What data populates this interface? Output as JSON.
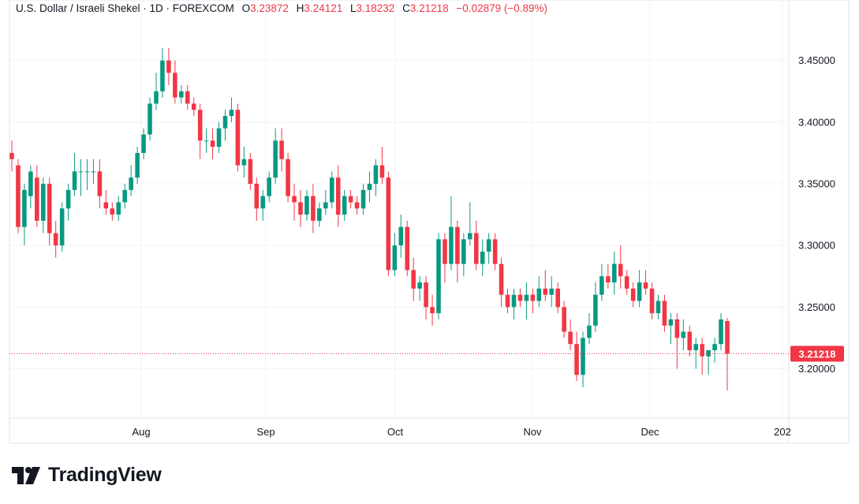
{
  "header": {
    "symbol": "U.S. Dollar / Israeli Shekel · 1D · FOREXCOM",
    "open_label": "O",
    "open": "3.23872",
    "high_label": "H",
    "high": "3.24121",
    "low_label": "L",
    "low": "3.18232",
    "close_label": "C",
    "close": "3.21218",
    "change": "−0.02879 (−0.89%)"
  },
  "brand": {
    "name": "TradingView"
  },
  "colors": {
    "up": "#089981",
    "down": "#f23645",
    "grid": "#f0f3fa",
    "axis_text": "#131722",
    "border": "#e0e3eb"
  },
  "chart_data": {
    "type": "candlestick",
    "title": "U.S. Dollar / Israeli Shekel · 1D · FOREXCOM",
    "xlabel": "",
    "ylabel": "",
    "ylim": [
      3.16,
      3.485
    ],
    "y_ticks": [
      "3.20000",
      "3.25000",
      "3.30000",
      "3.35000",
      "3.40000",
      "3.45000"
    ],
    "x_tick_labels": [
      "Aug",
      "Sep",
      "Oct",
      "Nov",
      "Dec",
      "202"
    ],
    "last_price_label": "3.21218",
    "last_price": 3.21218,
    "grid": true,
    "ohlc": [
      [
        3.375,
        3.385,
        3.36,
        3.37
      ],
      [
        3.365,
        3.37,
        3.31,
        3.315
      ],
      [
        3.315,
        3.35,
        3.3,
        3.345
      ],
      [
        3.34,
        3.365,
        3.33,
        3.36
      ],
      [
        3.355,
        3.365,
        3.315,
        3.32
      ],
      [
        3.32,
        3.355,
        3.31,
        3.35
      ],
      [
        3.35,
        3.355,
        3.3,
        3.31
      ],
      [
        3.31,
        3.32,
        3.29,
        3.3
      ],
      [
        3.3,
        3.335,
        3.295,
        3.33
      ],
      [
        3.33,
        3.35,
        3.32,
        3.345
      ],
      [
        3.345,
        3.375,
        3.34,
        3.36
      ],
      [
        3.36,
        3.37,
        3.34,
        3.36
      ],
      [
        3.36,
        3.37,
        3.345,
        3.36
      ],
      [
        3.36,
        3.37,
        3.35,
        3.36
      ],
      [
        3.36,
        3.37,
        3.33,
        3.34
      ],
      [
        3.335,
        3.345,
        3.325,
        3.33
      ],
      [
        3.33,
        3.335,
        3.32,
        3.325
      ],
      [
        3.325,
        3.34,
        3.32,
        3.335
      ],
      [
        3.335,
        3.35,
        3.33,
        3.345
      ],
      [
        3.345,
        3.365,
        3.34,
        3.355
      ],
      [
        3.355,
        3.38,
        3.35,
        3.375
      ],
      [
        3.375,
        3.395,
        3.37,
        3.39
      ],
      [
        3.39,
        3.42,
        3.385,
        3.415
      ],
      [
        3.415,
        3.44,
        3.41,
        3.425
      ],
      [
        3.425,
        3.46,
        3.42,
        3.45
      ],
      [
        3.45,
        3.46,
        3.43,
        3.44
      ],
      [
        3.44,
        3.45,
        3.415,
        3.42
      ],
      [
        3.42,
        3.43,
        3.415,
        3.425
      ],
      [
        3.425,
        3.43,
        3.41,
        3.415
      ],
      [
        3.415,
        3.42,
        3.405,
        3.41
      ],
      [
        3.41,
        3.415,
        3.37,
        3.385
      ],
      [
        3.385,
        3.395,
        3.375,
        3.385
      ],
      [
        3.385,
        3.395,
        3.37,
        3.38
      ],
      [
        3.38,
        3.4,
        3.375,
        3.395
      ],
      [
        3.395,
        3.41,
        3.385,
        3.405
      ],
      [
        3.405,
        3.42,
        3.4,
        3.41
      ],
      [
        3.41,
        3.415,
        3.36,
        3.365
      ],
      [
        3.365,
        3.38,
        3.355,
        3.37
      ],
      [
        3.37,
        3.375,
        3.345,
        3.35
      ],
      [
        3.35,
        3.355,
        3.32,
        3.33
      ],
      [
        3.33,
        3.345,
        3.32,
        3.34
      ],
      [
        3.34,
        3.36,
        3.335,
        3.355
      ],
      [
        3.355,
        3.395,
        3.35,
        3.385
      ],
      [
        3.385,
        3.395,
        3.36,
        3.37
      ],
      [
        3.37,
        3.375,
        3.335,
        3.34
      ],
      [
        3.34,
        3.35,
        3.32,
        3.335
      ],
      [
        3.335,
        3.345,
        3.315,
        3.325
      ],
      [
        3.325,
        3.345,
        3.32,
        3.34
      ],
      [
        3.34,
        3.35,
        3.31,
        3.32
      ],
      [
        3.32,
        3.335,
        3.315,
        3.33
      ],
      [
        3.33,
        3.345,
        3.325,
        3.335
      ],
      [
        3.335,
        3.36,
        3.33,
        3.355
      ],
      [
        3.355,
        3.365,
        3.315,
        3.325
      ],
      [
        3.325,
        3.345,
        3.32,
        3.34
      ],
      [
        3.34,
        3.345,
        3.33,
        3.335
      ],
      [
        3.335,
        3.34,
        3.325,
        3.33
      ],
      [
        3.33,
        3.35,
        3.325,
        3.345
      ],
      [
        3.345,
        3.36,
        3.335,
        3.35
      ],
      [
        3.35,
        3.37,
        3.34,
        3.365
      ],
      [
        3.365,
        3.38,
        3.35,
        3.355
      ],
      [
        3.355,
        3.36,
        3.275,
        3.28
      ],
      [
        3.28,
        3.31,
        3.275,
        3.3
      ],
      [
        3.3,
        3.325,
        3.29,
        3.315
      ],
      [
        3.315,
        3.32,
        3.275,
        3.28
      ],
      [
        3.28,
        3.29,
        3.255,
        3.265
      ],
      [
        3.265,
        3.275,
        3.255,
        3.27
      ],
      [
        3.27,
        3.275,
        3.24,
        3.25
      ],
      [
        3.25,
        3.26,
        3.235,
        3.245
      ],
      [
        3.245,
        3.31,
        3.24,
        3.305
      ],
      [
        3.305,
        3.31,
        3.27,
        3.285
      ],
      [
        3.285,
        3.34,
        3.28,
        3.315
      ],
      [
        3.315,
        3.32,
        3.27,
        3.285
      ],
      [
        3.285,
        3.31,
        3.275,
        3.305
      ],
      [
        3.305,
        3.335,
        3.3,
        3.31
      ],
      [
        3.31,
        3.32,
        3.28,
        3.285
      ],
      [
        3.285,
        3.305,
        3.275,
        3.295
      ],
      [
        3.295,
        3.31,
        3.285,
        3.305
      ],
      [
        3.305,
        3.31,
        3.28,
        3.285
      ],
      [
        3.285,
        3.29,
        3.25,
        3.26
      ],
      [
        3.26,
        3.265,
        3.245,
        3.25
      ],
      [
        3.25,
        3.265,
        3.24,
        3.26
      ],
      [
        3.26,
        3.265,
        3.25,
        3.255
      ],
      [
        3.255,
        3.27,
        3.24,
        3.26
      ],
      [
        3.26,
        3.265,
        3.245,
        3.255
      ],
      [
        3.255,
        3.275,
        3.25,
        3.265
      ],
      [
        3.265,
        3.28,
        3.255,
        3.26
      ],
      [
        3.26,
        3.275,
        3.25,
        3.265
      ],
      [
        3.265,
        3.27,
        3.245,
        3.25
      ],
      [
        3.25,
        3.255,
        3.225,
        3.23
      ],
      [
        3.23,
        3.24,
        3.215,
        3.22
      ],
      [
        3.22,
        3.23,
        3.19,
        3.195
      ],
      [
        3.195,
        3.23,
        3.185,
        3.225
      ],
      [
        3.225,
        3.245,
        3.22,
        3.235
      ],
      [
        3.235,
        3.27,
        3.23,
        3.26
      ],
      [
        3.26,
        3.285,
        3.255,
        3.275
      ],
      [
        3.275,
        3.285,
        3.265,
        3.27
      ],
      [
        3.27,
        3.295,
        3.26,
        3.285
      ],
      [
        3.285,
        3.3,
        3.265,
        3.275
      ],
      [
        3.275,
        3.28,
        3.26,
        3.265
      ],
      [
        3.265,
        3.27,
        3.25,
        3.255
      ],
      [
        3.255,
        3.28,
        3.25,
        3.27
      ],
      [
        3.27,
        3.28,
        3.26,
        3.265
      ],
      [
        3.265,
        3.27,
        3.24,
        3.245
      ],
      [
        3.245,
        3.26,
        3.24,
        3.255
      ],
      [
        3.255,
        3.26,
        3.23,
        3.235
      ],
      [
        3.235,
        3.245,
        3.22,
        3.24
      ],
      [
        3.24,
        3.245,
        3.2,
        3.225
      ],
      [
        3.225,
        3.24,
        3.215,
        3.23
      ],
      [
        3.23,
        3.235,
        3.21,
        3.215
      ],
      [
        3.215,
        3.225,
        3.2,
        3.22
      ],
      [
        3.22,
        3.225,
        3.195,
        3.21
      ],
      [
        3.21,
        3.215,
        3.195,
        3.215
      ],
      [
        3.215,
        3.225,
        3.205,
        3.22
      ],
      [
        3.22,
        3.245,
        3.215,
        3.24
      ],
      [
        3.2387,
        3.2412,
        3.1823,
        3.2122
      ]
    ]
  }
}
